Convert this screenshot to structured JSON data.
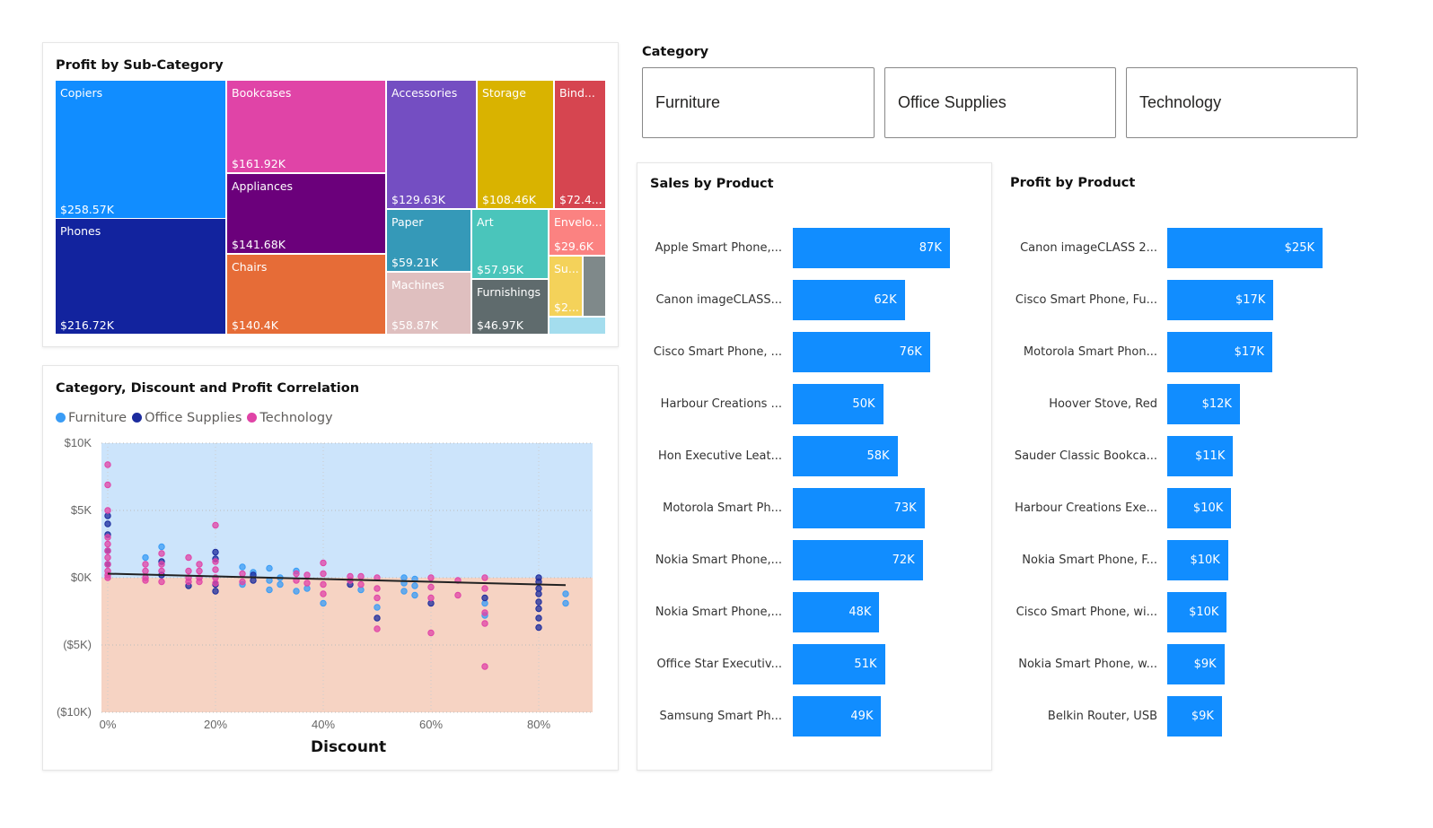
{
  "treemap": {
    "title": "Profit by Sub-Category",
    "tiles": [
      {
        "name": "Copiers",
        "value": "$258.57K",
        "color": "#118DFF"
      },
      {
        "name": "Phones",
        "value": "$216.72K",
        "color": "#12239E"
      },
      {
        "name": "Bookcases",
        "value": "$161.92K",
        "color": "#E044A7"
      },
      {
        "name": "Appliances",
        "value": "$141.68K",
        "color": "#6B007B"
      },
      {
        "name": "Chairs",
        "value": "$140.4K",
        "color": "#E66C37"
      },
      {
        "name": "Accessories",
        "value": "$129.63K",
        "color": "#744EC2"
      },
      {
        "name": "Storage",
        "value": "$108.46K",
        "color": "#D9B300"
      },
      {
        "name": "Bind...",
        "value": "$72.4...",
        "color": "#D64550"
      },
      {
        "name": "Paper",
        "value": "$59.21K",
        "color": "#3599B8"
      },
      {
        "name": "Machines",
        "value": "$58.87K",
        "color": "#DFBFBF"
      },
      {
        "name": "Art",
        "value": "$57.95K",
        "color": "#4AC5BB"
      },
      {
        "name": "Furnishings",
        "value": "$46.97K",
        "color": "#5F6B6D"
      },
      {
        "name": "Envelo...",
        "value": "$29.6K",
        "color": "#FB8281"
      },
      {
        "name": "Su...",
        "value": "$2...",
        "color": "#F4D25A"
      },
      {
        "name": "",
        "value": "",
        "color": "#7F898A"
      },
      {
        "name": "",
        "value": "",
        "color": "#A4DDEE"
      }
    ]
  },
  "slicer": {
    "title": "Category",
    "options": [
      "Furniture",
      "Office Supplies",
      "Technology"
    ]
  },
  "sales": {
    "title": "Sales by Product",
    "labels": [
      "Apple Smart Phone,...",
      "Canon imageCLASS...",
      "Cisco Smart Phone, ...",
      "Harbour Creations ...",
      "Hon Executive Leat...",
      "Motorola Smart Ph...",
      "Nokia Smart Phone,...",
      "Nokia Smart Phone,...",
      "Office Star Executiv...",
      "Samsung Smart Ph..."
    ],
    "values": [
      87,
      62,
      76,
      50,
      58,
      73,
      72,
      48,
      51,
      49
    ],
    "value_labels": [
      "87K",
      "62K",
      "76K",
      "50K",
      "58K",
      "73K",
      "72K",
      "48K",
      "51K",
      "49K"
    ]
  },
  "profit": {
    "title": "Profit by Product",
    "labels": [
      "Canon imageCLASS 2...",
      "Cisco Smart Phone, Fu...",
      "Motorola Smart Phon...",
      "Hoover Stove, Red",
      "Sauder Classic Bookca...",
      "Harbour Creations Exe...",
      "Nokia Smart Phone, F...",
      "Cisco Smart Phone, wi...",
      "Nokia Smart Phone, w...",
      "Belkin Router, USB"
    ],
    "values": [
      25,
      17.1,
      16.9,
      11.7,
      10.6,
      10.3,
      9.8,
      9.6,
      9.2,
      8.8
    ],
    "value_labels": [
      "$25K",
      "$17K",
      "$17K",
      "$12K",
      "$11K",
      "$10K",
      "$10K",
      "$10K",
      "$9K",
      "$9K"
    ]
  },
  "chart_data": {
    "type": "scatter",
    "title": "Category, Discount and Profit Correlation",
    "xlabel": "Discount",
    "ylabel": "",
    "xlim": [
      0,
      90
    ],
    "ylim": [
      -10,
      10
    ],
    "x_ticks": [
      "0%",
      "20%",
      "40%",
      "60%",
      "80%"
    ],
    "x_tick_values": [
      0,
      20,
      40,
      60,
      80
    ],
    "y_ticks": [
      "$10K",
      "$5K",
      "$0K",
      "($5K)",
      "($10K)"
    ],
    "y_tick_values": [
      10,
      5,
      0,
      -5,
      -10
    ],
    "legend": "top-left",
    "background_bands": {
      "positive": "#CCE4FB",
      "negative": "#F6D3C3"
    },
    "trend_line": [
      [
        0,
        0.3
      ],
      [
        85,
        -0.55
      ]
    ],
    "series": [
      {
        "name": "Furniture",
        "color": "#3A9CF5",
        "points": [
          [
            7,
            1.5
          ],
          [
            10,
            2.3
          ],
          [
            25,
            0.8
          ],
          [
            25,
            -0.5
          ],
          [
            27,
            0.4
          ],
          [
            30,
            0.7
          ],
          [
            30,
            -0.2
          ],
          [
            30,
            -0.9
          ],
          [
            32,
            0
          ],
          [
            32,
            -0.5
          ],
          [
            35,
            0.5
          ],
          [
            35,
            -1.0
          ],
          [
            37,
            -0.8
          ],
          [
            40,
            -1.9
          ],
          [
            47,
            -0.9
          ],
          [
            50,
            -2.2
          ],
          [
            55,
            0
          ],
          [
            55,
            -0.4
          ],
          [
            55,
            -1.0
          ],
          [
            57,
            -0.1
          ],
          [
            57,
            -0.6
          ],
          [
            57,
            -1.3
          ],
          [
            70,
            -1.9
          ],
          [
            70,
            -2.8
          ],
          [
            85,
            -1.2
          ],
          [
            85,
            -1.9
          ]
        ]
      },
      {
        "name": "Office Supplies",
        "color": "#1C2C9E",
        "points": [
          [
            0,
            4.6
          ],
          [
            0,
            4.0
          ],
          [
            0,
            3.2
          ],
          [
            0,
            2.0
          ],
          [
            0,
            1.0
          ],
          [
            10,
            1.2
          ],
          [
            10,
            0.2
          ],
          [
            15,
            -0.6
          ],
          [
            20,
            1.9
          ],
          [
            20,
            1.4
          ],
          [
            20,
            -0.5
          ],
          [
            20,
            -1.0
          ],
          [
            27,
            0.2
          ],
          [
            27,
            -0.2
          ],
          [
            45,
            -0.5
          ],
          [
            50,
            -3.0
          ],
          [
            60,
            -1.9
          ],
          [
            70,
            -1.5
          ],
          [
            80,
            0
          ],
          [
            80,
            -0.3
          ],
          [
            80,
            -0.8
          ],
          [
            80,
            -1.2
          ],
          [
            80,
            -1.8
          ],
          [
            80,
            -2.3
          ],
          [
            80,
            -3.0
          ],
          [
            80,
            -3.7
          ]
        ]
      },
      {
        "name": "Technology",
        "color": "#E044A7",
        "points": [
          [
            0,
            8.4
          ],
          [
            0,
            6.9
          ],
          [
            0,
            5.0
          ],
          [
            0,
            3.0
          ],
          [
            0,
            2.5
          ],
          [
            0,
            2.0
          ],
          [
            0,
            1.5
          ],
          [
            0,
            1.0
          ],
          [
            0,
            0.5
          ],
          [
            0,
            0.2
          ],
          [
            0,
            0
          ],
          [
            7,
            1.0
          ],
          [
            7,
            0.5
          ],
          [
            7,
            0
          ],
          [
            7,
            -0.2
          ],
          [
            10,
            1.8
          ],
          [
            10,
            1.0
          ],
          [
            10,
            0.5
          ],
          [
            10,
            -0.3
          ],
          [
            15,
            1.5
          ],
          [
            15,
            0.5
          ],
          [
            15,
            0
          ],
          [
            15,
            -0.3
          ],
          [
            17,
            1.0
          ],
          [
            17,
            0.5
          ],
          [
            17,
            0
          ],
          [
            17,
            -0.3
          ],
          [
            20,
            3.9
          ],
          [
            20,
            1.2
          ],
          [
            20,
            0.6
          ],
          [
            20,
            0
          ],
          [
            20,
            -0.4
          ],
          [
            25,
            0.3
          ],
          [
            25,
            -0.3
          ],
          [
            35,
            0.3
          ],
          [
            35,
            -0.2
          ],
          [
            37,
            0.2
          ],
          [
            37,
            -0.4
          ],
          [
            40,
            1.1
          ],
          [
            40,
            0.3
          ],
          [
            40,
            -0.5
          ],
          [
            40,
            -1.2
          ],
          [
            45,
            0.1
          ],
          [
            45,
            -0.2
          ],
          [
            47,
            0.1
          ],
          [
            47,
            -0.5
          ],
          [
            50,
            0
          ],
          [
            50,
            -0.8
          ],
          [
            50,
            -1.5
          ],
          [
            50,
            -3.8
          ],
          [
            60,
            0
          ],
          [
            60,
            -0.7
          ],
          [
            60,
            -1.5
          ],
          [
            60,
            -4.1
          ],
          [
            65,
            -0.2
          ],
          [
            65,
            -1.3
          ],
          [
            70,
            0
          ],
          [
            70,
            -0.8
          ],
          [
            70,
            -2.6
          ],
          [
            70,
            -3.4
          ],
          [
            70,
            -6.6
          ]
        ]
      }
    ]
  }
}
